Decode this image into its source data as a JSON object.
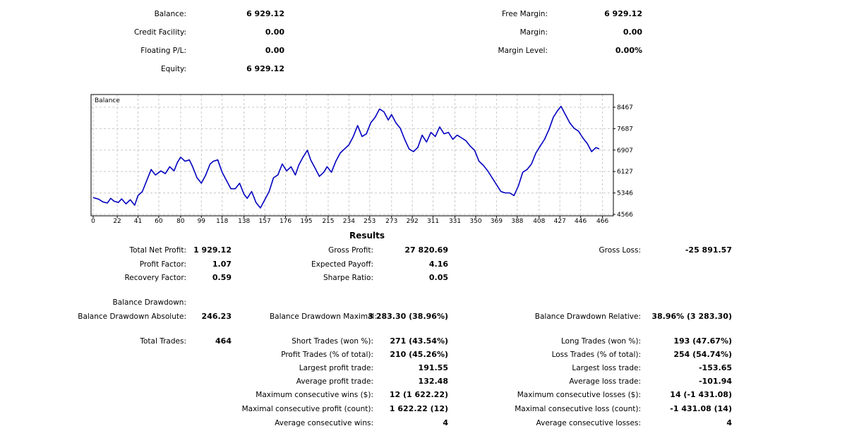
{
  "account": {
    "balance_label": "Balance:",
    "balance": "6 929.12",
    "credit_label": "Credit Facility:",
    "credit": "0.00",
    "floating_label": "Floating P/L:",
    "floating": "0.00",
    "equity_label": "Equity:",
    "equity": "6 929.12",
    "free_margin_label": "Free Margin:",
    "free_margin": "6 929.12",
    "margin_label": "Margin:",
    "margin": "0.00",
    "margin_level_label": "Margin Level:",
    "margin_level": "0.00%"
  },
  "chart_data": {
    "type": "line",
    "title": "Balance",
    "x_ticks": [
      "0",
      "22",
      "41",
      "60",
      "80",
      "99",
      "118",
      "138",
      "157",
      "176",
      "195",
      "215",
      "234",
      "253",
      "273",
      "292",
      "311",
      "331",
      "350",
      "369",
      "388",
      "408",
      "427",
      "446",
      "466"
    ],
    "y_ticks": [
      "8467",
      "7687",
      "6907",
      "6127",
      "5346",
      "4566"
    ],
    "xlim": [
      0,
      474
    ],
    "ylim": [
      4566,
      8467
    ],
    "grid": true,
    "series": [
      {
        "name": "",
        "color": "#0000c0",
        "points": [
          [
            0,
            5180
          ],
          [
            5,
            5120
          ],
          [
            9,
            5020
          ],
          [
            13,
            4980
          ],
          [
            16,
            5150
          ],
          [
            19,
            5050
          ],
          [
            23,
            5000
          ],
          [
            26,
            5130
          ],
          [
            30,
            4950
          ],
          [
            34,
            5100
          ],
          [
            38,
            4900
          ],
          [
            41,
            5250
          ],
          [
            45,
            5400
          ],
          [
            49,
            5800
          ],
          [
            53,
            6200
          ],
          [
            57,
            6000
          ],
          [
            62,
            6150
          ],
          [
            66,
            6050
          ],
          [
            70,
            6300
          ],
          [
            74,
            6150
          ],
          [
            77,
            6450
          ],
          [
            80,
            6650
          ],
          [
            84,
            6500
          ],
          [
            88,
            6550
          ],
          [
            91,
            6300
          ],
          [
            95,
            5900
          ],
          [
            99,
            5700
          ],
          [
            103,
            6000
          ],
          [
            107,
            6400
          ],
          [
            110,
            6500
          ],
          [
            114,
            6550
          ],
          [
            118,
            6100
          ],
          [
            122,
            5800
          ],
          [
            126,
            5500
          ],
          [
            130,
            5500
          ],
          [
            134,
            5700
          ],
          [
            138,
            5300
          ],
          [
            141,
            5150
          ],
          [
            145,
            5400
          ],
          [
            149,
            5000
          ],
          [
            153,
            4800
          ],
          [
            157,
            5100
          ],
          [
            161,
            5400
          ],
          [
            165,
            5900
          ],
          [
            169,
            6000
          ],
          [
            173,
            6400
          ],
          [
            177,
            6150
          ],
          [
            181,
            6300
          ],
          [
            185,
            6000
          ],
          [
            188,
            6350
          ],
          [
            192,
            6650
          ],
          [
            196,
            6900
          ],
          [
            199,
            6550
          ],
          [
            203,
            6250
          ],
          [
            207,
            5950
          ],
          [
            211,
            6100
          ],
          [
            214,
            6300
          ],
          [
            218,
            6100
          ],
          [
            222,
            6500
          ],
          [
            226,
            6800
          ],
          [
            230,
            6950
          ],
          [
            234,
            7100
          ],
          [
            238,
            7400
          ],
          [
            242,
            7800
          ],
          [
            246,
            7400
          ],
          [
            250,
            7500
          ],
          [
            254,
            7900
          ],
          [
            258,
            8100
          ],
          [
            262,
            8400
          ],
          [
            266,
            8300
          ],
          [
            270,
            8000
          ],
          [
            273,
            8200
          ],
          [
            277,
            7900
          ],
          [
            281,
            7700
          ],
          [
            285,
            7300
          ],
          [
            289,
            6950
          ],
          [
            293,
            6850
          ],
          [
            297,
            7000
          ],
          [
            301,
            7450
          ],
          [
            305,
            7200
          ],
          [
            309,
            7550
          ],
          [
            313,
            7400
          ],
          [
            317,
            7750
          ],
          [
            321,
            7500
          ],
          [
            325,
            7550
          ],
          [
            329,
            7300
          ],
          [
            333,
            7450
          ],
          [
            337,
            7350
          ],
          [
            341,
            7250
          ],
          [
            345,
            7050
          ],
          [
            349,
            6900
          ],
          [
            353,
            6500
          ],
          [
            357,
            6350
          ],
          [
            361,
            6150
          ],
          [
            365,
            5900
          ],
          [
            369,
            5650
          ],
          [
            373,
            5400
          ],
          [
            377,
            5350
          ],
          [
            381,
            5350
          ],
          [
            385,
            5250
          ],
          [
            389,
            5600
          ],
          [
            393,
            6100
          ],
          [
            397,
            6200
          ],
          [
            401,
            6400
          ],
          [
            405,
            6800
          ],
          [
            409,
            7050
          ],
          [
            413,
            7300
          ],
          [
            417,
            7650
          ],
          [
            421,
            8100
          ],
          [
            425,
            8350
          ],
          [
            428,
            8500
          ],
          [
            432,
            8200
          ],
          [
            436,
            7900
          ],
          [
            440,
            7700
          ],
          [
            444,
            7600
          ],
          [
            448,
            7350
          ],
          [
            452,
            7150
          ],
          [
            456,
            6850
          ],
          [
            460,
            7000
          ],
          [
            463,
            6950
          ]
        ]
      }
    ]
  },
  "results": {
    "title": "Results",
    "total_net_profit_label": "Total Net Profit:",
    "total_net_profit": "1 929.12",
    "gross_profit_label": "Gross Profit:",
    "gross_profit": "27 820.69",
    "gross_loss_label": "Gross Loss:",
    "gross_loss": "-25 891.57",
    "profit_factor_label": "Profit Factor:",
    "profit_factor": "1.07",
    "expected_payoff_label": "Expected Payoff:",
    "expected_payoff": "4.16",
    "recovery_factor_label": "Recovery Factor:",
    "recovery_factor": "0.59",
    "sharpe_ratio_label": "Sharpe Ratio:",
    "sharpe_ratio": "0.05",
    "balance_drawdown_label": "Balance Drawdown:",
    "dd_absolute_label": "Balance Drawdown Absolute:",
    "dd_absolute": "246.23",
    "dd_maximal_label": "Balance Drawdown Maximal:",
    "dd_maximal": "3 283.30 (38.96%)",
    "dd_relative_label": "Balance Drawdown Relative:",
    "dd_relative": "38.96% (3 283.30)",
    "total_trades_label": "Total Trades:",
    "total_trades": "464",
    "short_trades_label": "Short Trades (won %):",
    "short_trades": "271 (43.54%)",
    "long_trades_label": "Long Trades (won %):",
    "long_trades": "193 (47.67%)",
    "profit_trades_label": "Profit Trades (% of total):",
    "profit_trades": "210 (45.26%)",
    "loss_trades_label": "Loss Trades (% of total):",
    "loss_trades": "254 (54.74%)",
    "largest_profit_label": "Largest profit trade:",
    "largest_profit": "191.55",
    "largest_loss_label": "Largest loss trade:",
    "largest_loss": "-153.65",
    "avg_profit_label": "Average profit trade:",
    "avg_profit": "132.48",
    "avg_loss_label": "Average loss trade:",
    "avg_loss": "-101.94",
    "max_consec_wins_label": "Maximum consecutive wins ($):",
    "max_consec_wins": "12 (1 622.22)",
    "max_consec_losses_label": "Maximum consecutive losses ($):",
    "max_consec_losses": "14 (-1 431.08)",
    "maximal_consec_profit_label": "Maximal consecutive profit (count):",
    "maximal_consec_profit": "1 622.22 (12)",
    "maximal_consec_loss_label": "Maximal consecutive loss (count):",
    "maximal_consec_loss": "-1 431.08 (14)",
    "avg_consec_wins_label": "Average consecutive wins:",
    "avg_consec_wins": "4",
    "avg_consec_losses_label": "Average consecutive losses:",
    "avg_consec_losses": "4"
  }
}
